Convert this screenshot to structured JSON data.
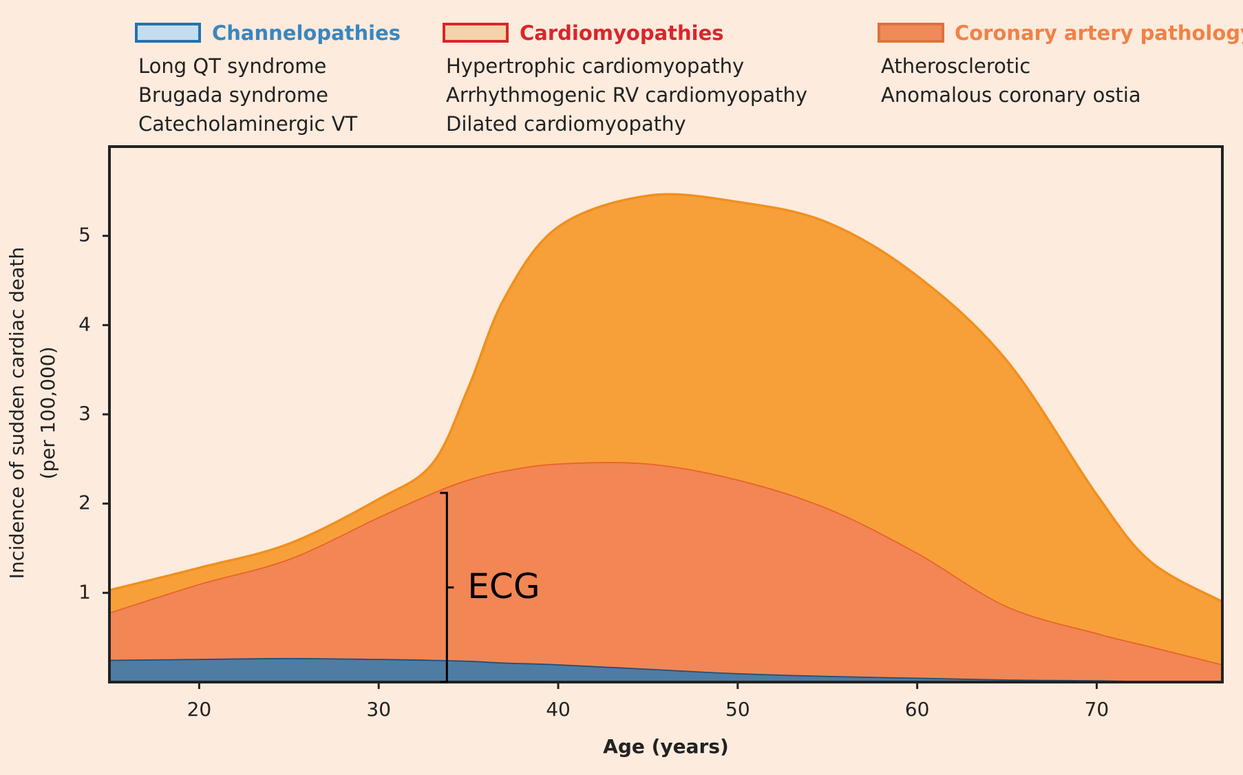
{
  "chart_data": {
    "type": "stacked_area",
    "x_label": "Age (years)",
    "y_label": [
      "Incidence of sudden cardiac death",
      "(per 100,000)"
    ],
    "x": [
      15,
      20,
      25,
      30,
      33,
      35,
      37,
      40,
      45,
      50,
      55,
      60,
      65,
      70,
      73,
      77
    ],
    "series": [
      {
        "name": "Channelopathies",
        "color": "#4f7ca3",
        "line_color": "#1f4e79",
        "legend_fill": "#c5dcef",
        "legend_stroke": "#2272b0",
        "legend_text_color": "#3a86c0",
        "items": [
          "Long QT syndrome",
          "Brugada syndrome",
          "Catecholaminergic VT"
        ],
        "values": [
          0.25,
          0.26,
          0.27,
          0.26,
          0.25,
          0.24,
          0.22,
          0.2,
          0.15,
          0.1,
          0.07,
          0.05,
          0.03,
          0.02,
          0.01,
          0
        ]
      },
      {
        "name": "Cardiomyopathies",
        "color": "#f28655",
        "line_color": "#e8622a",
        "legend_fill": "#f3d3a9",
        "legend_stroke": "#d9262b",
        "legend_text_color": "#d9262b",
        "items": [
          "Hypertrophic cardiomyopathy",
          "Arrhythmogenic RV cardiomyopathy",
          "Dilated cardiomyopathy"
        ],
        "values": [
          0.53,
          0.84,
          1.11,
          1.59,
          1.87,
          2.03,
          2.15,
          2.25,
          2.3,
          2.17,
          1.88,
          1.4,
          0.82,
          0.53,
          0.39,
          0.2
        ]
      },
      {
        "name": "Coronary artery pathology",
        "color": "#f7a03a",
        "line_color": "#f0901f",
        "legend_fill": "#ef8a5a",
        "legend_stroke": "#e0703a",
        "legend_text_color": "#ef8246",
        "items": [
          "Atherosclerotic",
          "Anomalous coronary ostia"
        ],
        "values": [
          0.25,
          0.18,
          0.17,
          0.2,
          0.33,
          1.03,
          1.93,
          2.65,
          3.0,
          3.11,
          3.2,
          3.1,
          2.75,
          1.55,
          0.95,
          0.7
        ]
      }
    ],
    "xlim": [
      15,
      77
    ],
    "xticks": [
      20,
      30,
      40,
      50,
      60,
      70
    ],
    "ylim": [
      0,
      6
    ],
    "yticks": [
      1,
      2,
      3,
      4,
      5
    ],
    "annotation": {
      "text": "ECG",
      "x": 33.8,
      "y_from": 0,
      "y_to": 2.12
    }
  }
}
